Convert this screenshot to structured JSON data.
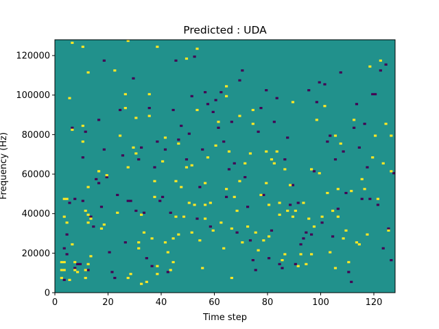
{
  "chart_data": {
    "type": "heatmap",
    "title": "Predicted : UDA",
    "xlabel": "Time step",
    "ylabel": "Frequency (Hz)",
    "xlim": [
      0,
      128
    ],
    "ylim": [
      0,
      128000
    ],
    "x_ticks": [
      0,
      20,
      40,
      60,
      80,
      100,
      120
    ],
    "y_ticks": [
      0,
      20000,
      40000,
      60000,
      80000,
      100000,
      120000
    ],
    "x_tick_labels": [
      "0",
      "20",
      "40",
      "60",
      "80",
      "100",
      "120"
    ],
    "y_tick_labels": [
      "0",
      "20000",
      "40000",
      "60000",
      "80000",
      "100000",
      "120000"
    ],
    "grid": false,
    "legend": "none",
    "colormap": "viridis",
    "colors": {
      "background": "#21918c",
      "high": "#fde725",
      "low": "#440154"
    },
    "n_time_steps": 128,
    "n_frequency_bins": 128,
    "bin_height_hz": 1000,
    "high_cells": [
      [
        2,
        7
      ],
      [
        2,
        11
      ],
      [
        2,
        15
      ],
      [
        3,
        11
      ],
      [
        3,
        15
      ],
      [
        3,
        38
      ],
      [
        3,
        47
      ],
      [
        4,
        35
      ],
      [
        4,
        47
      ],
      [
        5,
        6
      ],
      [
        5,
        98
      ],
      [
        6,
        24
      ],
      [
        6,
        82
      ],
      [
        6,
        126
      ],
      [
        7,
        11
      ],
      [
        7,
        15
      ],
      [
        8,
        10
      ],
      [
        10,
        76
      ],
      [
        10,
        84
      ],
      [
        10,
        124
      ],
      [
        11,
        7
      ],
      [
        11,
        11
      ],
      [
        11,
        41
      ],
      [
        12,
        14
      ],
      [
        12,
        35
      ],
      [
        12,
        39
      ],
      [
        12,
        53
      ],
      [
        12,
        111
      ],
      [
        13,
        18
      ],
      [
        13,
        37
      ],
      [
        16,
        61
      ],
      [
        17,
        32
      ],
      [
        18,
        34
      ],
      [
        19,
        59
      ],
      [
        22,
        112
      ],
      [
        23,
        40
      ],
      [
        24,
        79
      ],
      [
        26,
        93
      ],
      [
        26,
        100
      ],
      [
        27,
        63
      ],
      [
        27,
        127
      ],
      [
        27,
        7
      ],
      [
        28,
        9
      ],
      [
        29,
        73
      ],
      [
        30,
        88
      ],
      [
        30,
        70
      ],
      [
        31,
        22
      ],
      [
        31,
        25
      ],
      [
        32,
        4
      ],
      [
        32,
        39
      ],
      [
        33,
        30
      ],
      [
        34,
        5
      ],
      [
        35,
        100
      ],
      [
        35,
        89
      ],
      [
        36,
        27
      ],
      [
        37,
        56
      ],
      [
        37,
        48
      ],
      [
        38,
        9
      ],
      [
        38,
        13
      ],
      [
        38,
        124
      ],
      [
        40,
        66
      ],
      [
        41,
        78
      ],
      [
        41,
        25
      ],
      [
        42,
        20
      ],
      [
        43,
        11
      ],
      [
        44,
        27
      ],
      [
        44,
        15
      ],
      [
        45,
        38
      ],
      [
        45,
        56
      ],
      [
        46,
        75
      ],
      [
        46,
        29
      ],
      [
        47,
        53
      ],
      [
        48,
        38
      ],
      [
        49,
        118
      ],
      [
        49,
        63
      ],
      [
        50,
        45
      ],
      [
        51,
        30
      ],
      [
        51,
        64
      ],
      [
        52,
        44
      ],
      [
        53,
        92
      ],
      [
        53,
        123
      ],
      [
        54,
        26
      ],
      [
        55,
        12
      ],
      [
        56,
        44
      ],
      [
        56,
        37
      ],
      [
        56,
        55
      ],
      [
        57,
        68
      ],
      [
        58,
        45
      ],
      [
        59,
        31
      ],
      [
        60,
        74
      ],
      [
        61,
        86
      ],
      [
        62,
        35
      ],
      [
        63,
        22
      ],
      [
        64,
        52
      ],
      [
        64,
        104
      ],
      [
        64,
        99
      ],
      [
        65,
        71
      ],
      [
        66,
        7
      ],
      [
        66,
        32
      ],
      [
        67,
        48
      ],
      [
        68,
        41
      ],
      [
        69,
        56
      ],
      [
        69,
        89
      ],
      [
        70,
        25
      ],
      [
        71,
        65
      ],
      [
        72,
        33
      ],
      [
        73,
        70
      ],
      [
        74,
        92
      ],
      [
        74,
        85
      ],
      [
        75,
        30
      ],
      [
        76,
        21
      ],
      [
        77,
        49
      ],
      [
        78,
        26
      ],
      [
        79,
        55
      ],
      [
        79,
        71
      ],
      [
        80,
        44
      ],
      [
        80,
        28
      ],
      [
        81,
        67
      ],
      [
        82,
        65
      ],
      [
        83,
        71
      ],
      [
        84,
        45
      ],
      [
        84,
        39
      ],
      [
        85,
        16
      ],
      [
        86,
        62
      ],
      [
        86,
        19
      ],
      [
        87,
        41
      ],
      [
        88,
        54
      ],
      [
        89,
        96
      ],
      [
        89,
        38
      ],
      [
        90,
        41
      ],
      [
        91,
        13
      ],
      [
        92,
        19
      ],
      [
        93,
        45
      ],
      [
        94,
        14
      ],
      [
        95,
        37
      ],
      [
        96,
        62
      ],
      [
        96,
        19
      ],
      [
        97,
        33
      ],
      [
        98,
        87
      ],
      [
        99,
        60
      ],
      [
        100,
        38
      ],
      [
        101,
        94
      ],
      [
        102,
        50
      ],
      [
        103,
        20
      ],
      [
        104,
        41
      ],
      [
        105,
        79
      ],
      [
        105,
        12
      ],
      [
        106,
        52
      ],
      [
        106,
        38
      ],
      [
        107,
        75
      ],
      [
        108,
        27
      ],
      [
        109,
        31
      ],
      [
        110,
        15
      ],
      [
        111,
        51
      ],
      [
        112,
        87
      ],
      [
        113,
        25
      ],
      [
        114,
        24
      ],
      [
        115,
        57
      ],
      [
        116,
        52
      ],
      [
        117,
        29
      ],
      [
        118,
        114
      ],
      [
        119,
        68
      ],
      [
        120,
        79
      ],
      [
        121,
        47
      ],
      [
        122,
        117
      ],
      [
        123,
        65
      ],
      [
        124,
        85
      ],
      [
        125,
        31
      ],
      [
        126,
        61
      ],
      [
        126,
        79
      ]
    ],
    "low_cells": [
      [
        3,
        6
      ],
      [
        3,
        22
      ],
      [
        4,
        19
      ],
      [
        4,
        29
      ],
      [
        5,
        45
      ],
      [
        6,
        83
      ],
      [
        7,
        47
      ],
      [
        7,
        12
      ],
      [
        8,
        14
      ],
      [
        9,
        14
      ],
      [
        10,
        46
      ],
      [
        10,
        68
      ],
      [
        11,
        81
      ],
      [
        12,
        11
      ],
      [
        13,
        38
      ],
      [
        14,
        33
      ],
      [
        15,
        57
      ],
      [
        16,
        87
      ],
      [
        16,
        55
      ],
      [
        17,
        43
      ],
      [
        18,
        117
      ],
      [
        18,
        72
      ],
      [
        19,
        58
      ],
      [
        20,
        20
      ],
      [
        21,
        10
      ],
      [
        22,
        7
      ],
      [
        23,
        49
      ],
      [
        24,
        92
      ],
      [
        25,
        69
      ],
      [
        26,
        25
      ],
      [
        27,
        46
      ],
      [
        28,
        46
      ],
      [
        29,
        108
      ],
      [
        30,
        41
      ],
      [
        31,
        67
      ],
      [
        32,
        73
      ],
      [
        33,
        40
      ],
      [
        34,
        17
      ],
      [
        35,
        93
      ],
      [
        36,
        13
      ],
      [
        37,
        63
      ],
      [
        38,
        76
      ],
      [
        39,
        46
      ],
      [
        40,
        48
      ],
      [
        41,
        72
      ],
      [
        42,
        10
      ],
      [
        43,
        40
      ],
      [
        44,
        92
      ],
      [
        45,
        117
      ],
      [
        46,
        77
      ],
      [
        47,
        84
      ],
      [
        48,
        38
      ],
      [
        49,
        67
      ],
      [
        50,
        80
      ],
      [
        51,
        99
      ],
      [
        52,
        119
      ],
      [
        53,
        37
      ],
      [
        54,
        53
      ],
      [
        55,
        72
      ],
      [
        56,
        101
      ],
      [
        57,
        95
      ],
      [
        58,
        33
      ],
      [
        59,
        91
      ],
      [
        60,
        97
      ],
      [
        61,
        83
      ],
      [
        62,
        101
      ],
      [
        63,
        76
      ],
      [
        64,
        48
      ],
      [
        65,
        62
      ],
      [
        66,
        86
      ],
      [
        67,
        65
      ],
      [
        68,
        30
      ],
      [
        69,
        107
      ],
      [
        70,
        112
      ],
      [
        71,
        58
      ],
      [
        72,
        43
      ],
      [
        73,
        26
      ],
      [
        74,
        16
      ],
      [
        75,
        11
      ],
      [
        76,
        81
      ],
      [
        77,
        93
      ],
      [
        78,
        49
      ],
      [
        79,
        102
      ],
      [
        80,
        17
      ],
      [
        81,
        31
      ],
      [
        82,
        86
      ],
      [
        83,
        98
      ],
      [
        84,
        14
      ],
      [
        85,
        12
      ],
      [
        86,
        67
      ],
      [
        87,
        78
      ],
      [
        88,
        44
      ],
      [
        89,
        54
      ],
      [
        90,
        14
      ],
      [
        91,
        45
      ],
      [
        92,
        24
      ],
      [
        93,
        27
      ],
      [
        94,
        30
      ],
      [
        95,
        102
      ],
      [
        96,
        29
      ],
      [
        97,
        61
      ],
      [
        98,
        96
      ],
      [
        99,
        106
      ],
      [
        100,
        35
      ],
      [
        101,
        105
      ],
      [
        102,
        76
      ],
      [
        103,
        79
      ],
      [
        104,
        28
      ],
      [
        105,
        67
      ],
      [
        106,
        42
      ],
      [
        107,
        111
      ],
      [
        108,
        71
      ],
      [
        109,
        50
      ],
      [
        110,
        10
      ],
      [
        111,
        5
      ],
      [
        112,
        83
      ],
      [
        113,
        95
      ],
      [
        114,
        73
      ],
      [
        115,
        47
      ],
      [
        116,
        85
      ],
      [
        117,
        63
      ],
      [
        118,
        47
      ],
      [
        119,
        100
      ],
      [
        120,
        100
      ],
      [
        121,
        44
      ],
      [
        122,
        112
      ],
      [
        123,
        22
      ],
      [
        124,
        115
      ],
      [
        125,
        32
      ],
      [
        126,
        16
      ],
      [
        127,
        60
      ]
    ]
  }
}
